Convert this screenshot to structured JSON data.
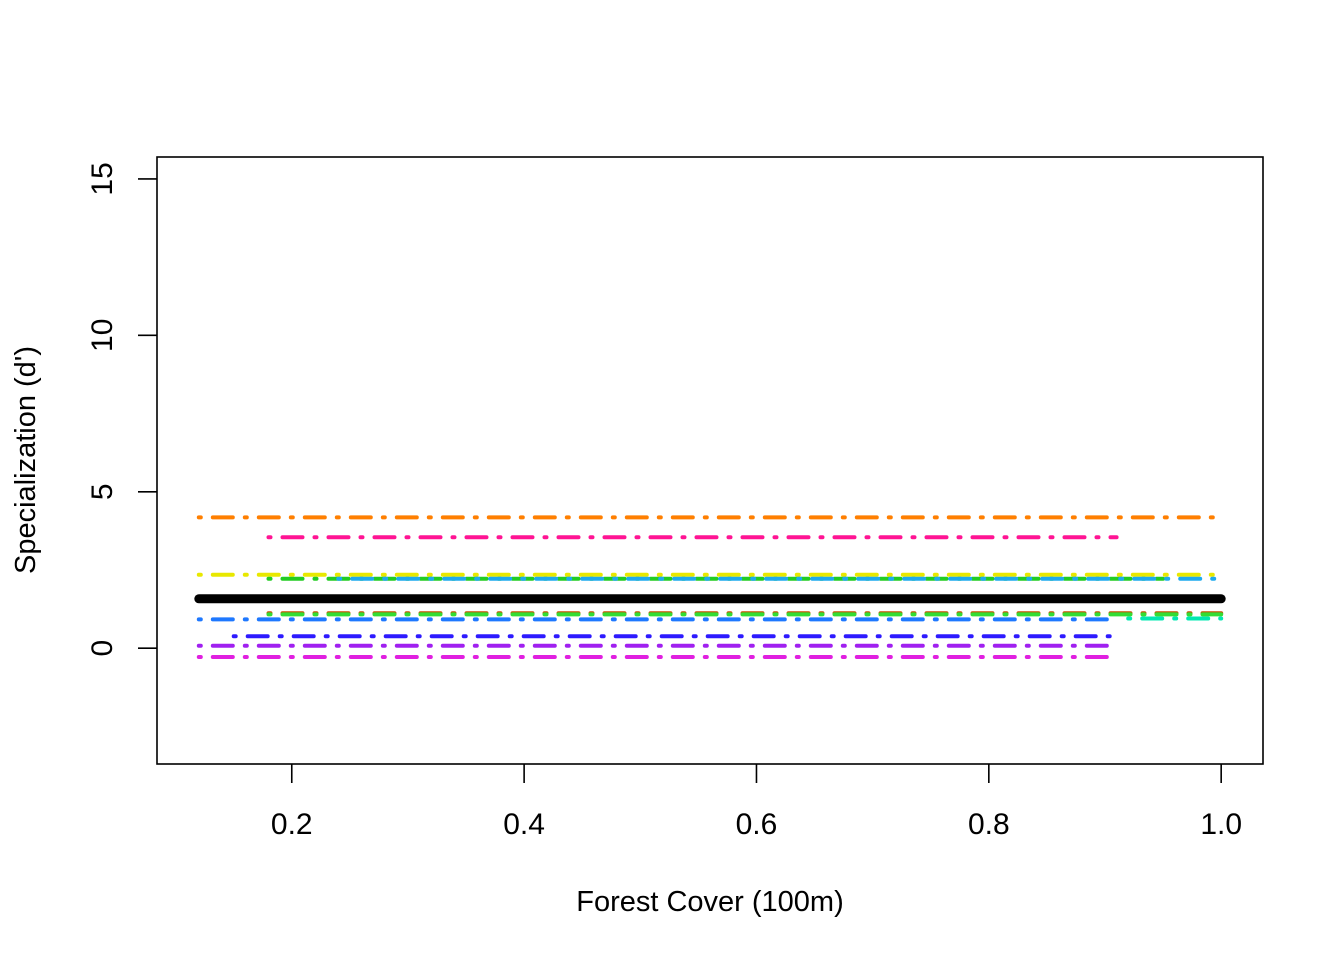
{
  "chart_data": {
    "type": "line",
    "title": "",
    "xlabel": "Forest Cover (100m)",
    "ylabel": "Specialization (d')",
    "xlim": [
      0.084,
      1.036
    ],
    "ylim": [
      -3.7,
      15.7
    ],
    "x_ticks": [
      {
        "value": 0.2,
        "label": "0.2"
      },
      {
        "value": 0.4,
        "label": "0.4"
      },
      {
        "value": 0.6,
        "label": "0.6"
      },
      {
        "value": 0.8,
        "label": "0.8"
      },
      {
        "value": 1.0,
        "label": "1.0"
      }
    ],
    "y_ticks": [
      {
        "value": 0,
        "label": "0"
      },
      {
        "value": 5,
        "label": "5"
      },
      {
        "value": 10,
        "label": "10"
      },
      {
        "value": 15,
        "label": "15"
      }
    ],
    "grid": false,
    "legend": "none",
    "series": [
      {
        "color": "#ff7f00",
        "x": [
          0.12,
          1.0
        ],
        "y": [
          4.18,
          4.18
        ],
        "style": "dotdash"
      },
      {
        "color": "#ff1493",
        "x": [
          0.18,
          0.91
        ],
        "y": [
          3.55,
          3.55
        ],
        "style": "dotdash"
      },
      {
        "color": "#e8e800",
        "x": [
          0.12,
          1.0
        ],
        "y": [
          2.35,
          2.35
        ],
        "style": "dotdash"
      },
      {
        "color": "#22cc22",
        "x": [
          0.18,
          0.95
        ],
        "y": [
          2.22,
          2.22
        ],
        "style": "dotdash"
      },
      {
        "color": "#1eaaee",
        "x": [
          0.24,
          1.0
        ],
        "y": [
          2.22,
          2.22
        ],
        "style": "dotdash"
      },
      {
        "color": "#b8e030",
        "x": [
          0.12,
          1.0
        ],
        "y": [
          1.58,
          1.58
        ],
        "style": "dotdash"
      },
      {
        "color": "#c85000",
        "x": [
          0.18,
          1.0
        ],
        "y": [
          1.12,
          1.12
        ],
        "style": "dotdash"
      },
      {
        "color": "#33dd33",
        "x": [
          0.18,
          1.0
        ],
        "y": [
          1.08,
          1.08
        ],
        "style": "dotdash"
      },
      {
        "color": "#00e8b0",
        "x": [
          0.92,
          1.0
        ],
        "y": [
          0.95,
          0.95
        ],
        "style": "dotdash"
      },
      {
        "color": "#1e78ff",
        "x": [
          0.12,
          0.91
        ],
        "y": [
          0.92,
          0.92
        ],
        "style": "dotdash"
      },
      {
        "color": "#2d1aff",
        "x": [
          0.15,
          0.91
        ],
        "y": [
          0.38,
          0.38
        ],
        "style": "dotdash"
      },
      {
        "color": "#a020f0",
        "x": [
          0.12,
          0.91
        ],
        "y": [
          0.08,
          0.08
        ],
        "style": "dotdash"
      },
      {
        "color": "#e020e0",
        "x": [
          0.12,
          0.91
        ],
        "y": [
          -0.28,
          -0.28
        ],
        "style": "dotdash"
      },
      {
        "color": "#000000",
        "x": [
          0.12,
          1.0
        ],
        "y": [
          1.58,
          1.58
        ],
        "style": "solid-thick"
      }
    ]
  }
}
